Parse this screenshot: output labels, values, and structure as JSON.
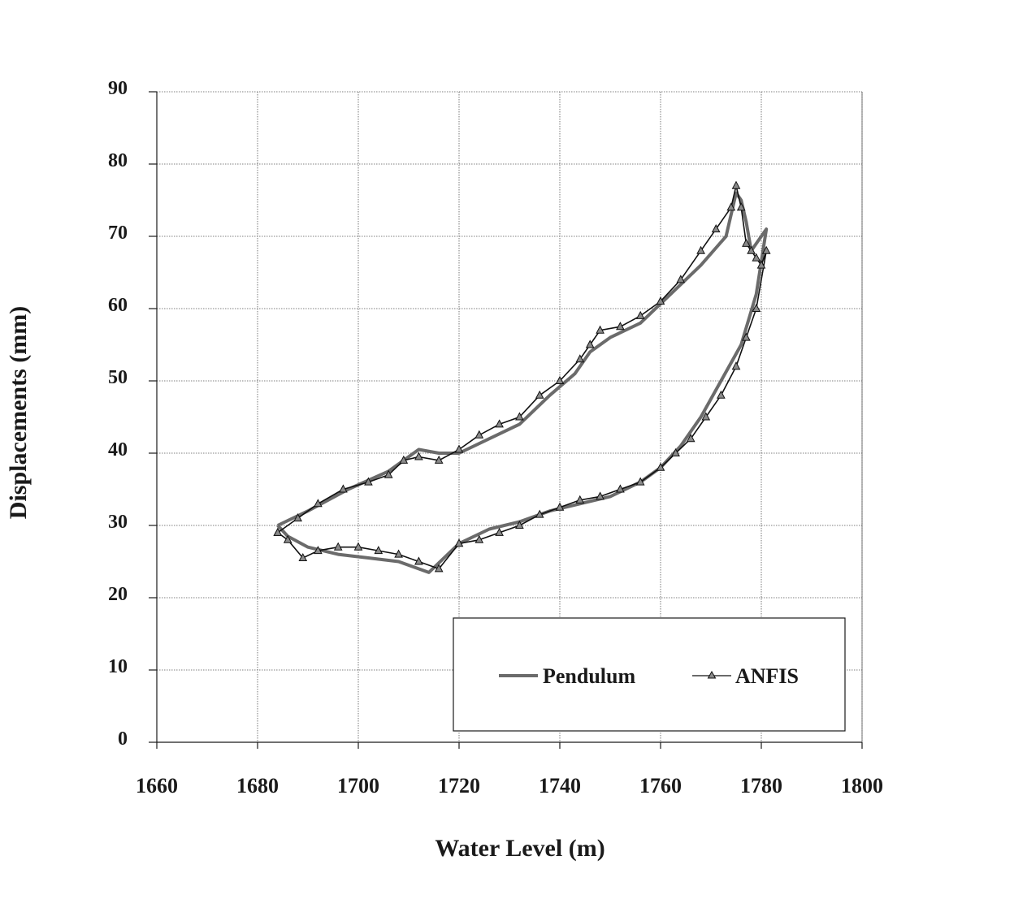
{
  "chart_data": {
    "type": "line",
    "title": "",
    "xlabel": "Water Level (m)",
    "ylabel": "Displacements (mm)",
    "xlim": [
      1660,
      1800
    ],
    "ylim": [
      0,
      90
    ],
    "x_ticks": [
      "1660",
      "1680",
      "1700",
      "1720",
      "1740",
      "1760",
      "1780",
      "1800"
    ],
    "y_ticks": [
      "0",
      "10",
      "20",
      "30",
      "40",
      "50",
      "60",
      "70",
      "80",
      "90"
    ],
    "grid": true,
    "legend_position": "bottom-right",
    "colors": {
      "pendulum": "#6b6b6b",
      "anfis": "#111111",
      "marker_fill": "#8a8a8a"
    },
    "series": [
      {
        "name": "Pendulum",
        "style": "thick gray line",
        "x": [
          1684,
          1690,
          1698,
          1706,
          1712,
          1716,
          1720,
          1726,
          1732,
          1738,
          1743,
          1746,
          1750,
          1756,
          1762,
          1768,
          1773,
          1775,
          1776,
          1777,
          1778,
          1779,
          1780,
          1781,
          1779,
          1776,
          1772,
          1768,
          1764,
          1760,
          1756,
          1750,
          1744,
          1738,
          1732,
          1726,
          1720,
          1714,
          1708,
          1702,
          1696,
          1690,
          1686,
          1684
        ],
        "y": [
          30,
          32,
          35,
          37.5,
          40.5,
          40,
          40,
          42,
          44,
          48,
          51,
          54,
          56,
          58,
          62,
          66,
          70,
          76,
          75,
          72,
          68,
          69,
          70,
          71,
          62,
          55,
          50,
          45,
          41,
          38,
          36,
          34,
          33,
          32,
          30.5,
          29.5,
          27.5,
          23.5,
          25,
          25.5,
          26,
          27,
          28.5,
          30
        ]
      },
      {
        "name": "ANFIS",
        "style": "thin black line with triangle markers",
        "x": [
          1684,
          1688,
          1692,
          1697,
          1702,
          1706,
          1709,
          1712,
          1716,
          1720,
          1724,
          1728,
          1732,
          1736,
          1740,
          1744,
          1746,
          1748,
          1752,
          1756,
          1760,
          1764,
          1768,
          1771,
          1774,
          1775,
          1776,
          1777,
          1778,
          1779,
          1780,
          1781,
          1779,
          1777,
          1775,
          1772,
          1769,
          1766,
          1763,
          1760,
          1756,
          1752,
          1748,
          1744,
          1740,
          1736,
          1732,
          1728,
          1724,
          1720,
          1716,
          1712,
          1708,
          1704,
          1700,
          1696,
          1692,
          1689,
          1686,
          1684
        ],
        "y": [
          29,
          31,
          33,
          35,
          36,
          37,
          39,
          39.5,
          39,
          40.5,
          42.5,
          44,
          45,
          48,
          50,
          53,
          55,
          57,
          57.5,
          59,
          61,
          64,
          68,
          71,
          74,
          77,
          74,
          69,
          68,
          67,
          66,
          68,
          60,
          56,
          52,
          48,
          45,
          42,
          40,
          38,
          36,
          35,
          34,
          33.5,
          32.5,
          31.5,
          30,
          29,
          28,
          27.5,
          24,
          25,
          26,
          26.5,
          27,
          27,
          26.5,
          25.5,
          28,
          29
        ]
      }
    ]
  }
}
